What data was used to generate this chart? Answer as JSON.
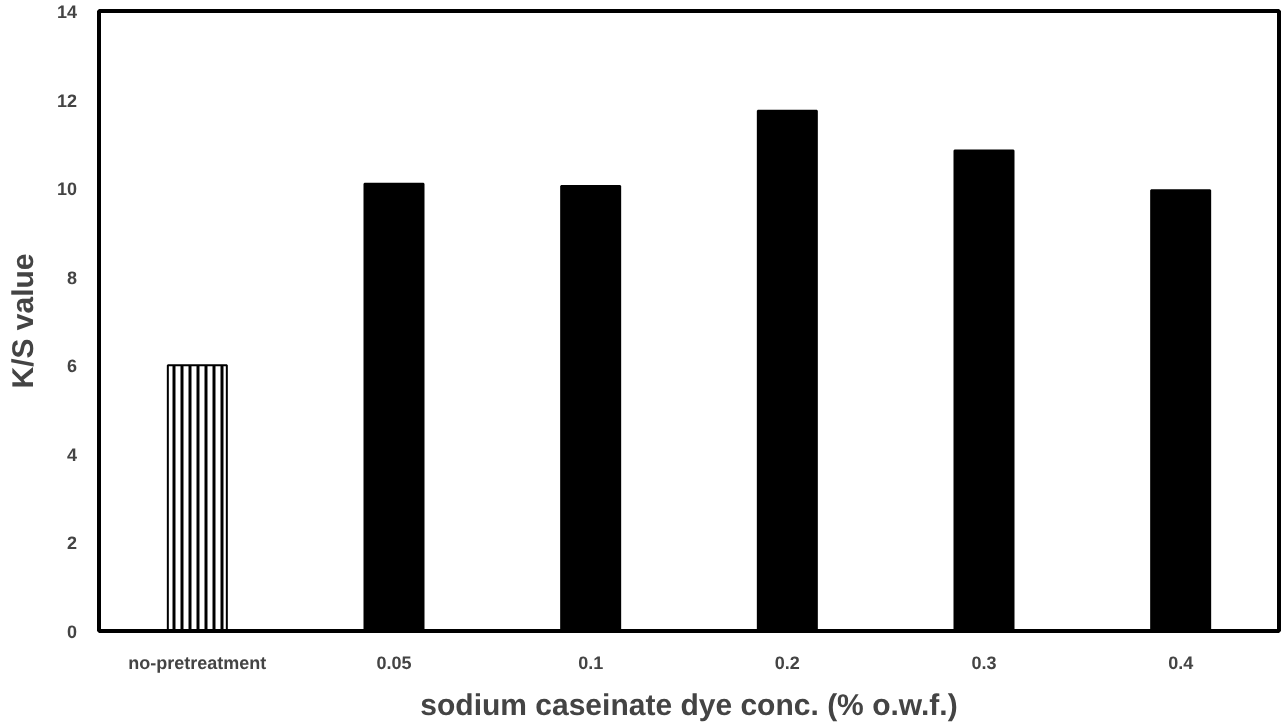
{
  "chart_data": {
    "type": "bar",
    "xlabel": "sodium caseinate dye conc. (% o.w.f.)",
    "ylabel": "K/S value",
    "categories": [
      "no-pretreatment",
      "0.05",
      "0.1",
      "0.2",
      "0.3",
      "0.4"
    ],
    "values": [
      6.0,
      10.1,
      10.05,
      11.75,
      10.85,
      9.95
    ],
    "colors": [
      "#ffffff",
      "#000000",
      "#000000",
      "#000000",
      "#000000",
      "#000000"
    ],
    "ylim": [
      0,
      14
    ],
    "yticks": [
      0,
      2,
      4,
      6,
      8,
      10,
      12,
      14
    ],
    "grid": false
  }
}
